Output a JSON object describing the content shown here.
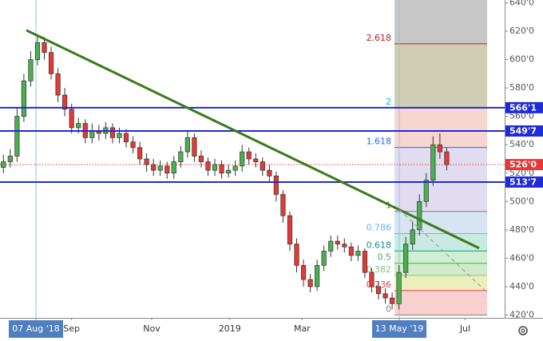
{
  "chart_data": {
    "type": "candlestick",
    "xlim": [
      -0.5,
      73.5
    ],
    "ylim": [
      418,
      642
    ],
    "yticks": [
      {
        "value": 420,
        "label": "420'0"
      },
      {
        "value": 440,
        "label": "440'0"
      },
      {
        "value": 460,
        "label": "460'0"
      },
      {
        "value": 480,
        "label": "480'0"
      },
      {
        "value": 500,
        "label": "500'0"
      },
      {
        "value": 520,
        "label": "520'0"
      },
      {
        "value": 540,
        "label": "540'0"
      },
      {
        "value": 560,
        "label": "560'0"
      },
      {
        "value": 580,
        "label": "580'0"
      },
      {
        "value": 600,
        "label": "600'0"
      },
      {
        "value": 620,
        "label": "620'0"
      },
      {
        "value": 640,
        "label": "640'0"
      }
    ],
    "xticks": [
      {
        "value": 4.77,
        "label": "07 Aug '18"
      },
      {
        "value": 10,
        "label": "Sep"
      },
      {
        "value": 21.75,
        "label": "Nov"
      },
      {
        "value": 33.2,
        "label": "2019"
      },
      {
        "value": 43.8,
        "label": "Mar"
      },
      {
        "value": 58.05,
        "label": "13 May '19"
      },
      {
        "value": 67.7,
        "label": "Jul"
      }
    ],
    "markers": [
      4.77,
      58.05
    ],
    "up_color": "#4caf50",
    "down_color": "#e53935",
    "open": [
      524,
      528,
      532,
      560,
      585,
      600,
      612,
      605,
      590,
      575,
      565,
      552,
      555,
      545,
      550,
      548,
      552,
      545,
      548,
      542,
      538,
      530,
      526,
      522,
      525,
      520,
      528,
      535,
      545,
      532,
      528,
      522,
      526,
      520,
      522,
      525,
      535,
      530,
      528,
      522,
      518,
      505,
      490,
      470,
      455,
      445,
      440,
      455,
      465,
      472,
      470,
      468,
      462,
      465,
      450,
      440,
      435,
      432,
      428,
      450,
      470,
      480,
      500,
      515,
      540,
      535
    ],
    "high": [
      533,
      537,
      566,
      590,
      606,
      618,
      616,
      609,
      594,
      580,
      569,
      559,
      558,
      555,
      554,
      556,
      555,
      552,
      551,
      546,
      542,
      534,
      530,
      529,
      528,
      532,
      539,
      550,
      548,
      536,
      531,
      530,
      529,
      526,
      529,
      540,
      538,
      534,
      531,
      526,
      521,
      508,
      493,
      474,
      459,
      449,
      459,
      469,
      476,
      476,
      474,
      471,
      469,
      467,
      453,
      444,
      439,
      436,
      455,
      475,
      486,
      505,
      520,
      546,
      548,
      538
    ],
    "low": [
      520,
      524,
      528,
      556,
      581,
      596,
      600,
      586,
      570,
      560,
      548,
      548,
      541,
      541,
      543,
      544,
      541,
      541,
      538,
      534,
      526,
      521,
      518,
      518,
      516,
      516,
      524,
      531,
      528,
      524,
      518,
      518,
      516,
      517,
      518,
      521,
      526,
      524,
      518,
      514,
      500,
      485,
      465,
      450,
      440,
      436,
      437,
      451,
      461,
      466,
      464,
      458,
      458,
      446,
      436,
      431,
      428,
      424,
      424,
      446,
      466,
      476,
      496,
      511,
      530,
      522
    ],
    "close": [
      528,
      532,
      560,
      585,
      600,
      612,
      605,
      590,
      575,
      565,
      552,
      555,
      545,
      550,
      548,
      552,
      545,
      548,
      542,
      538,
      530,
      526,
      522,
      525,
      520,
      528,
      535,
      545,
      532,
      528,
      522,
      526,
      520,
      522,
      525,
      535,
      530,
      528,
      522,
      518,
      505,
      490,
      470,
      455,
      445,
      440,
      455,
      465,
      472,
      470,
      468,
      462,
      465,
      450,
      440,
      435,
      432,
      428,
      450,
      470,
      480,
      500,
      515,
      540,
      535,
      526
    ],
    "levels": [
      {
        "value": 566.1,
        "label": "566'1",
        "color": "#1f2bd6"
      },
      {
        "value": 549.7,
        "label": "549'7",
        "color": "#1f2bd6"
      },
      {
        "value": 513.7,
        "label": "513'7",
        "color": "#1f2bd6"
      }
    ],
    "last_price": {
      "value": 526,
      "label": "526'0",
      "color": "#e53935"
    },
    "trendline": {
      "x": [
        3.36,
        69.76
      ],
      "y": [
        620.7,
        467.1
      ],
      "color": "#3d7a1a"
    },
    "projection": {
      "x": [
        58.05,
        70.7
      ],
      "y": [
        494.3,
        437
      ],
      "color": "#9e9e9e"
    },
    "fib": {
      "start": 420,
      "end": 493,
      "x": [
        57.35,
        70.93
      ],
      "levels": [
        0,
        0.236,
        0.382,
        0.5,
        0.618,
        0.786,
        1,
        1.618,
        2,
        2.618
      ],
      "colors": [
        "#808080",
        "#f23645",
        "#81c784",
        "#4caf50",
        "#089981",
        "#64b5f6",
        "#808080",
        "#2962ff",
        "#00bcd4",
        "#b71c1c"
      ],
      "fills": [
        "#f8c8c8",
        "#e6ecb0",
        "#c7e8c0",
        "#c8ecc8",
        "#c0e6dc",
        "#cfe0ee",
        "#ddd6ee",
        "#f6cfc8",
        "#c9c6a8",
        "#bdbdbd"
      ]
    }
  }
}
